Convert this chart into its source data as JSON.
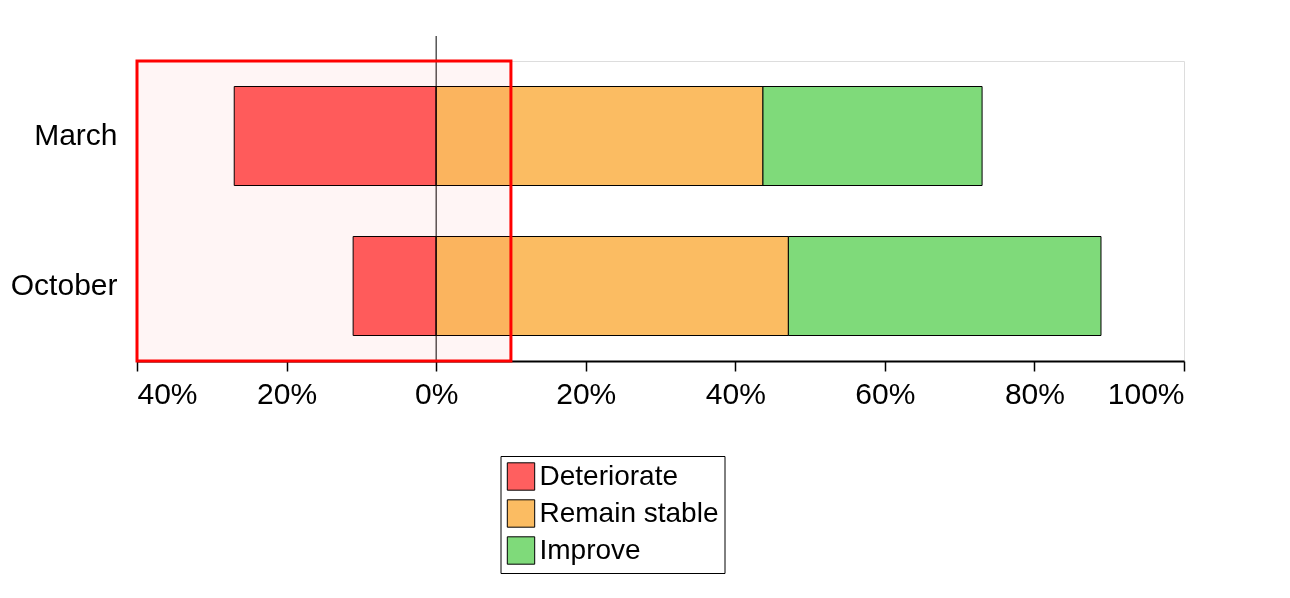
{
  "chart_data": {
    "type": "bar",
    "orientation": "horizontal",
    "stacked": true,
    "categories": [
      "March",
      "October"
    ],
    "series": [
      {
        "name": "Deteriorate",
        "color": "#ff5f5f",
        "values": [
          -27,
          -11.1
        ]
      },
      {
        "name": "Remain stable",
        "color": "#fbbc62",
        "values": [
          43.7,
          47.1
        ]
      },
      {
        "name": "Improve",
        "color": "#7fda7a",
        "values": [
          29.3,
          41.8
        ]
      }
    ],
    "xlim": [
      -40,
      100
    ],
    "xticks": [
      {
        "value": -40,
        "label": "40%"
      },
      {
        "value": -20,
        "label": "20%"
      },
      {
        "value": 0,
        "label": "0%"
      },
      {
        "value": 20,
        "label": "20%"
      },
      {
        "value": 40,
        "label": "40%"
      },
      {
        "value": 60,
        "label": "60%"
      },
      {
        "value": 80,
        "label": "80%"
      },
      {
        "value": 100,
        "label": "100%"
      }
    ],
    "ref_lines": [
      {
        "axis": "x",
        "value": 0,
        "color": "#000000"
      }
    ],
    "bands": [
      {
        "axis": "x",
        "from": -40,
        "to": 10,
        "color": "#ff0000"
      }
    ],
    "grid": false,
    "legend": "bottom"
  }
}
